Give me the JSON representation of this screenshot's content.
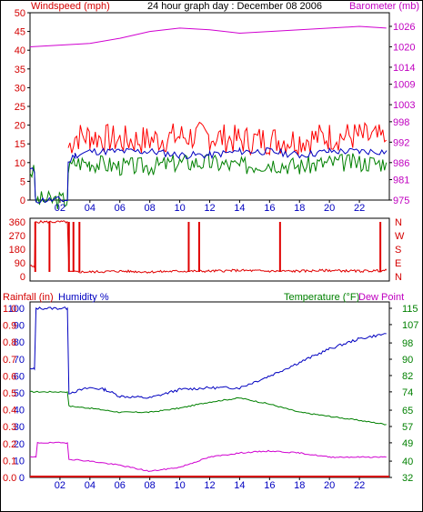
{
  "colors": {
    "wind_axis": "#d40000",
    "baro_axis": "#c000c0",
    "gust": "#ff0000",
    "wind_avg": "#0000c0",
    "wind_min": "#008000",
    "baro_line": "#d000d0",
    "direction": "#e00000",
    "rain_axis": "#d40000",
    "humidity_axis": "#0000c0",
    "temp_axis": "#008000",
    "dewpoint_axis": "#c000c0",
    "humidity_line": "#0000c0",
    "temp_line": "#008000",
    "dew_line": "#d000d0",
    "rain_line": "#d40000"
  },
  "header": {
    "wind_label": "Windspeed (mph)",
    "title": "24 hour graph day : December 08 2006",
    "baro_label": "Barometer (mb)"
  },
  "x_ticks": [
    "02",
    "04",
    "06",
    "08",
    "10",
    "12",
    "14",
    "16",
    "18",
    "20",
    "22"
  ],
  "bottom_labels": {
    "rain": "Rainfall (in)",
    "humidity": "Humidity %",
    "temp": "Temperature (°F)",
    "dew": "Dew Point"
  },
  "chart_data": [
    {
      "type": "line",
      "title": "24 hour graph day : December 08 2006",
      "x_unit": "hour",
      "xlim": [
        0,
        24
      ],
      "left_axis": {
        "label": "Windspeed (mph)",
        "ylim": [
          0,
          50
        ],
        "ticks": [
          0,
          5,
          10,
          15,
          20,
          25,
          30,
          35,
          40,
          45,
          50
        ]
      },
      "right_axis": {
        "label": "Barometer (mb)",
        "ylim": [
          975,
          1030
        ],
        "ticks": [
          975,
          981,
          986,
          992,
          998,
          1003,
          1009,
          1014,
          1020,
          1026
        ]
      },
      "series": [
        {
          "axis": "left",
          "x": [
            0,
            0.3,
            0.35,
            0.4,
            2.5,
            2.55,
            3,
            4,
            6,
            8,
            10,
            12,
            14,
            16,
            18,
            20,
            22,
            23.8
          ],
          "y": [
            8,
            7.5,
            1,
            0,
            0,
            10,
            12,
            13,
            13,
            13,
            12,
            12,
            13,
            13,
            12,
            13,
            13,
            13
          ]
        },
        {
          "axis": "left",
          "x": [
            0,
            0.3,
            0.35,
            0.4,
            2.5,
            2.55,
            3,
            4,
            6,
            8,
            10,
            12,
            14,
            16,
            18,
            20,
            22,
            23.8
          ],
          "y": [
            8,
            7,
            1,
            0,
            0,
            8,
            10,
            10,
            9,
            9,
            10,
            10,
            9,
            10,
            9,
            10,
            10,
            10
          ]
        },
        {
          "axis": "left",
          "x": [
            2.55,
            3,
            4,
            6,
            8,
            10,
            12,
            14,
            16,
            18,
            20,
            22,
            23.8
          ],
          "y": [
            14,
            17,
            17,
            16,
            16,
            17,
            17,
            16,
            16,
            16,
            17,
            17,
            16
          ]
        },
        {
          "axis": "right",
          "x": [
            0,
            2,
            4,
            6,
            8,
            10,
            12,
            14,
            16,
            18,
            20,
            22,
            23.8
          ],
          "y": [
            1020,
            1020.5,
            1021,
            1022.5,
            1024.5,
            1025.5,
            1025,
            1024,
            1024.5,
            1025,
            1025.5,
            1026,
            1025.5
          ]
        }
      ]
    },
    {
      "type": "line",
      "xlim": [
        0,
        24
      ],
      "ylim": [
        0,
        360
      ],
      "left_ticks": [
        360,
        270,
        180,
        90,
        0
      ],
      "right_labels": [
        "N",
        "W",
        "S",
        "E",
        "N"
      ],
      "series": [
        {
          "x": [
            0,
            0.3,
            0.35,
            0.4,
            2.5,
            2.6,
            3,
            4,
            6,
            8,
            10,
            12,
            14,
            16,
            18,
            20,
            22,
            23.8
          ],
          "y": [
            70,
            60,
            360,
            360,
            360,
            30,
            30,
            30,
            35,
            30,
            35,
            35,
            40,
            35,
            35,
            40,
            35,
            40
          ]
        }
      ],
      "spikes": [
        0.35,
        1.3,
        2.6,
        2.9,
        3.3,
        10.6,
        11.3,
        16.7,
        23.4
      ]
    },
    {
      "type": "line",
      "xlim": [
        0,
        24
      ],
      "left_axis_humidity": {
        "label": "Humidity %",
        "ylim": [
          0,
          100
        ],
        "ticks": [
          0,
          10,
          20,
          30,
          40,
          50,
          60,
          70,
          80,
          90,
          100
        ]
      },
      "left_axis_rain": {
        "label": "Rainfall (in)",
        "ylim": [
          0,
          1.2
        ],
        "ticks": [
          "0.0",
          "0.1",
          "0.2",
          "0.3",
          "0.4",
          "0.5",
          "0.6",
          "0.7",
          "0.8",
          "0.9",
          "1.0",
          "1.1"
        ]
      },
      "right_axis": {
        "label": "Temperature (°F)",
        "ylim": [
          32,
          115
        ],
        "ticks": [
          32,
          40,
          49,
          57,
          65,
          74,
          82,
          90,
          98,
          107,
          115
        ]
      },
      "series": [
        {
          "name": "Humidity %",
          "axis": "humidity",
          "x": [
            0,
            0.3,
            0.4,
            2.5,
            2.6,
            4,
            5,
            6,
            8,
            10,
            12,
            14,
            16,
            18,
            20,
            22,
            23.8
          ],
          "y": [
            64,
            64,
            100,
            100,
            50,
            53,
            52,
            48,
            47,
            52,
            53,
            53,
            60,
            68,
            76,
            82,
            85
          ]
        },
        {
          "name": "Temperature (°F)",
          "axis": "temp",
          "x": [
            0,
            2.5,
            2.6,
            4,
            6,
            8,
            10,
            12,
            14,
            16,
            18,
            20,
            22,
            23.8
          ],
          "y": [
            74,
            74,
            67,
            66,
            64,
            64,
            66,
            69,
            71,
            68,
            64,
            62,
            60,
            58
          ]
        },
        {
          "name": "Dew Point",
          "axis": "temp",
          "x": [
            0,
            0.4,
            0.5,
            2.5,
            2.6,
            4,
            6,
            8,
            10,
            12,
            14,
            16,
            18,
            20,
            22,
            23.8
          ],
          "y": [
            42,
            42,
            49,
            49,
            41,
            40,
            38,
            35,
            37,
            42,
            44,
            45,
            44,
            42,
            42,
            42
          ]
        },
        {
          "name": "Rainfall (in)",
          "axis": "rain",
          "x": [
            0,
            23.8
          ],
          "y": [
            0,
            0
          ]
        }
      ]
    }
  ]
}
